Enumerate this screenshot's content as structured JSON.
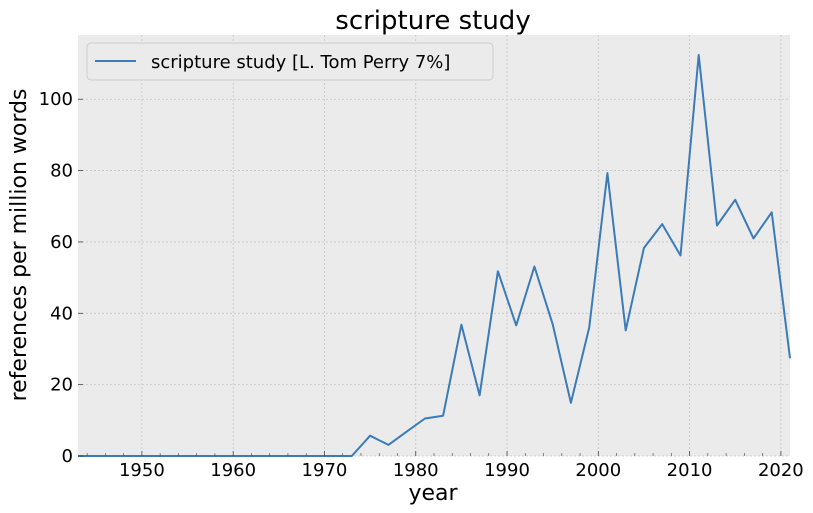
{
  "chart_data": {
    "type": "line",
    "title": "scripture study",
    "xlabel": "year",
    "ylabel": "references per million words",
    "xlim": [
      1943,
      2021
    ],
    "ylim": [
      0,
      118
    ],
    "x_ticks": [
      1950,
      1960,
      1970,
      1980,
      1990,
      2000,
      2010,
      2020
    ],
    "y_ticks": [
      0,
      20,
      40,
      60,
      80,
      100
    ],
    "grid": true,
    "legend_position": "top-left",
    "background": "#ebebeb",
    "series": [
      {
        "name": "scripture study [L. Tom Perry 7%]",
        "color": "#3a7bb8",
        "x": [
          1943,
          1945,
          1947,
          1949,
          1951,
          1953,
          1955,
          1957,
          1959,
          1961,
          1963,
          1965,
          1967,
          1969,
          1971,
          1973,
          1975,
          1977,
          1979,
          1981,
          1983,
          1985,
          1987,
          1989,
          1991,
          1993,
          1995,
          1997,
          1999,
          2001,
          2003,
          2005,
          2007,
          2009,
          2011,
          2013,
          2015,
          2017,
          2019,
          2021
        ],
        "y": [
          0,
          0,
          0,
          0,
          0,
          0,
          0,
          0,
          0,
          0,
          0,
          0,
          0,
          0,
          0,
          0,
          5.7,
          3.1,
          6.8,
          10.5,
          11.3,
          36.8,
          17.0,
          51.8,
          36.6,
          53.1,
          36.9,
          14.9,
          36.0,
          79.3,
          35.2,
          58.3,
          65.0,
          56.2,
          112.4,
          64.6,
          71.8,
          61.0,
          68.3,
          27.4
        ]
      }
    ]
  }
}
